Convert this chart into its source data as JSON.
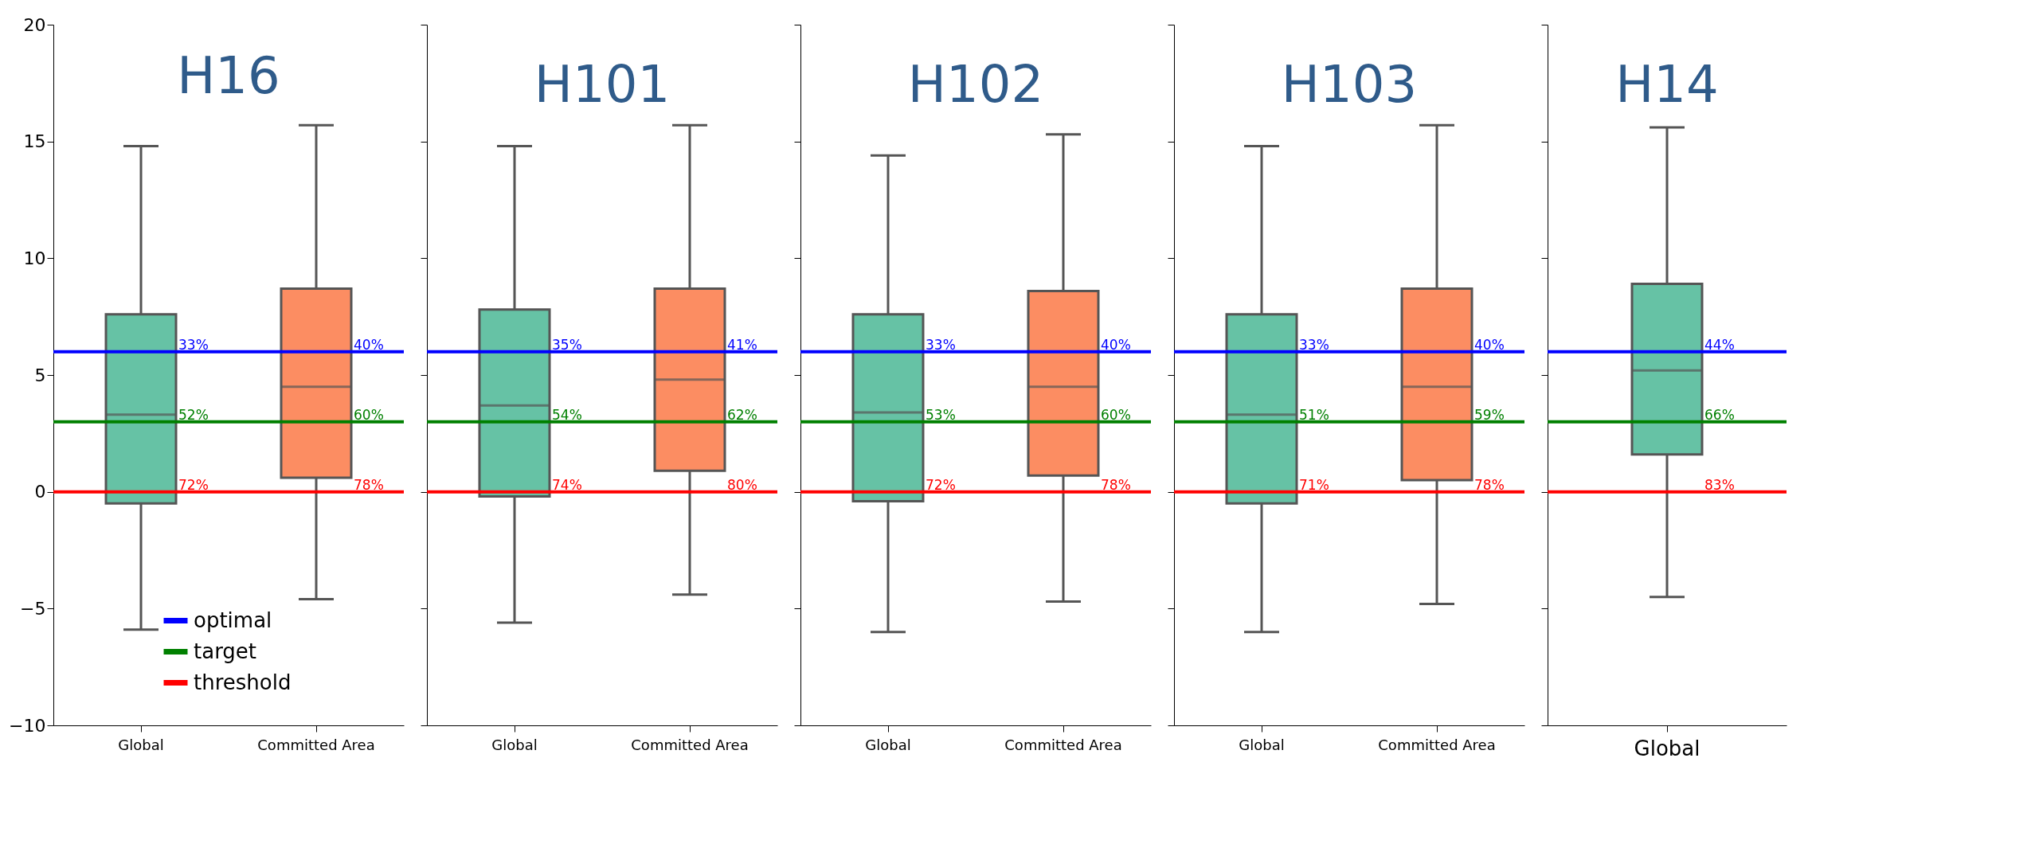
{
  "chart_data": [
    {
      "type": "box",
      "title": "H16",
      "categories": [
        "Global",
        "Committed Area"
      ],
      "colors": [
        "#66c2a5",
        "#fc8d62"
      ],
      "ylim": [
        -10,
        20
      ],
      "yticks": [
        -10,
        -5,
        0,
        5,
        10,
        15,
        20
      ],
      "grid": false,
      "legend": "bottom",
      "boxes": [
        {
          "low": -5.9,
          "q1": -0.5,
          "median": 3.3,
          "q3": 7.6,
          "high": 14.8
        },
        {
          "low": -4.6,
          "q1": 0.6,
          "median": 4.5,
          "q3": 8.7,
          "high": 15.7
        }
      ],
      "ref_lines": [
        {
          "axis": "y",
          "value": 6,
          "label": "optimal",
          "color": "#0000ff"
        },
        {
          "axis": "y",
          "value": 3,
          "label": "target",
          "color": "#008000"
        },
        {
          "axis": "y",
          "value": 0,
          "label": "threshold",
          "color": "#ff0000"
        }
      ],
      "annotations": [
        {
          "text": "33%",
          "x": "Global",
          "y": 6
        },
        {
          "text": "52%",
          "x": "Global",
          "y": 3
        },
        {
          "text": "72%",
          "x": "Global",
          "y": 0
        },
        {
          "text": "40%",
          "x": "Committed Area",
          "y": 6
        },
        {
          "text": "60%",
          "x": "Committed Area",
          "y": 3
        },
        {
          "text": "78%",
          "x": "Committed Area",
          "y": 0
        }
      ]
    },
    {
      "type": "box",
      "title": "H101",
      "categories": [
        "Global",
        "Committed Area"
      ],
      "colors": [
        "#66c2a5",
        "#fc8d62"
      ],
      "ylim": [
        -10,
        20
      ],
      "yticks": [
        -10,
        -5,
        0,
        5,
        10,
        15,
        20
      ],
      "grid": false,
      "tick_labels": "x",
      "boxes": [
        {
          "low": -5.6,
          "q1": -0.2,
          "median": 3.7,
          "q3": 7.8,
          "high": 14.8
        },
        {
          "low": -4.4,
          "q1": 0.9,
          "median": 4.8,
          "q3": 8.7,
          "high": 15.7
        }
      ],
      "ref_lines": [
        {
          "axis": "y",
          "value": 6,
          "color": "#0000ff"
        },
        {
          "axis": "y",
          "value": 3,
          "color": "#008000"
        },
        {
          "axis": "y",
          "value": 0,
          "color": "#ff0000"
        }
      ],
      "annotations": [
        {
          "text": "35%",
          "x": "Global",
          "y": 6
        },
        {
          "text": "54%",
          "x": "Global",
          "y": 3
        },
        {
          "text": "74%",
          "x": "Global",
          "y": 0
        },
        {
          "text": "41%",
          "x": "Committed Area",
          "y": 6
        },
        {
          "text": "62%",
          "x": "Committed Area",
          "y": 3
        },
        {
          "text": "80%",
          "x": "Committed Area",
          "y": 0
        }
      ]
    },
    {
      "type": "box",
      "title": "H102",
      "categories": [
        "Global",
        "Committed Area"
      ],
      "colors": [
        "#66c2a5",
        "#fc8d62"
      ],
      "ylim": [
        -10,
        20
      ],
      "yticks": [
        -10,
        -5,
        0,
        5,
        10,
        15,
        20
      ],
      "grid": false,
      "tick_labels": "x",
      "boxes": [
        {
          "low": -6.0,
          "q1": -0.4,
          "median": 3.4,
          "q3": 7.6,
          "high": 14.4
        },
        {
          "low": -4.7,
          "q1": 0.7,
          "median": 4.5,
          "q3": 8.6,
          "high": 15.3
        }
      ],
      "ref_lines": [
        {
          "axis": "y",
          "value": 6,
          "color": "#0000ff"
        },
        {
          "axis": "y",
          "value": 3,
          "color": "#008000"
        },
        {
          "axis": "y",
          "value": 0,
          "color": "#ff0000"
        }
      ],
      "annotations": [
        {
          "text": "33%",
          "x": "Global",
          "y": 6
        },
        {
          "text": "53%",
          "x": "Global",
          "y": 3
        },
        {
          "text": "72%",
          "x": "Global",
          "y": 0
        },
        {
          "text": "40%",
          "x": "Committed Area",
          "y": 6
        },
        {
          "text": "60%",
          "x": "Committed Area",
          "y": 3
        },
        {
          "text": "78%",
          "x": "Committed Area",
          "y": 0
        }
      ]
    },
    {
      "type": "box",
      "title": "H103",
      "categories": [
        "Global",
        "Committed Area"
      ],
      "colors": [
        "#66c2a5",
        "#fc8d62"
      ],
      "ylim": [
        -10,
        20
      ],
      "yticks": [
        -10,
        -5,
        0,
        5,
        10,
        15,
        20
      ],
      "grid": false,
      "tick_labels": "x",
      "boxes": [
        {
          "low": -6.0,
          "q1": -0.5,
          "median": 3.3,
          "q3": 7.6,
          "high": 14.8
        },
        {
          "low": -4.8,
          "q1": 0.5,
          "median": 4.5,
          "q3": 8.7,
          "high": 15.7
        }
      ],
      "ref_lines": [
        {
          "axis": "y",
          "value": 6,
          "color": "#0000ff"
        },
        {
          "axis": "y",
          "value": 3,
          "color": "#008000"
        },
        {
          "axis": "y",
          "value": 0,
          "color": "#ff0000"
        }
      ],
      "annotations": [
        {
          "text": "33%",
          "x": "Global",
          "y": 6
        },
        {
          "text": "51%",
          "x": "Global",
          "y": 3
        },
        {
          "text": "71%",
          "x": "Global",
          "y": 0
        },
        {
          "text": "40%",
          "x": "Committed Area",
          "y": 6
        },
        {
          "text": "59%",
          "x": "Committed Area",
          "y": 3
        },
        {
          "text": "78%",
          "x": "Committed Area",
          "y": 0
        }
      ]
    },
    {
      "type": "box",
      "title": "H14",
      "categories": [
        "Global"
      ],
      "colors": [
        "#66c2a5"
      ],
      "ylim": [
        -10,
        20
      ],
      "yticks": [
        -10,
        -5,
        0,
        5,
        10,
        15,
        20
      ],
      "grid": false,
      "tick_labels": "x",
      "boxes": [
        {
          "low": -4.5,
          "q1": 1.6,
          "median": 5.2,
          "q3": 8.9,
          "high": 15.6
        }
      ],
      "ref_lines": [
        {
          "axis": "y",
          "value": 6,
          "color": "#0000ff"
        },
        {
          "axis": "y",
          "value": 3,
          "color": "#008000"
        },
        {
          "axis": "y",
          "value": 0,
          "color": "#ff0000"
        }
      ],
      "annotations": [
        {
          "text": "44%",
          "x": "Global",
          "y": 6
        },
        {
          "text": "66%",
          "x": "Global",
          "y": 3
        },
        {
          "text": "83%",
          "x": "Global",
          "y": 0
        }
      ]
    }
  ]
}
